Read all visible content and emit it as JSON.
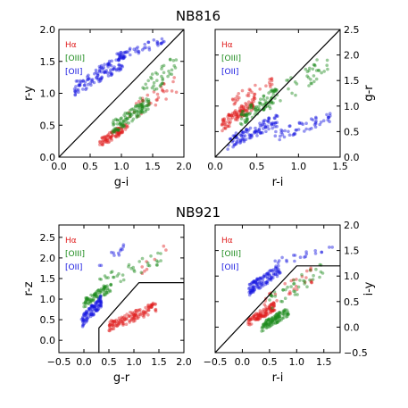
{
  "titles": [
    "NB816",
    "NB921"
  ],
  "colors": {
    "ha": "#e02020",
    "oiii": "#1a8a1a",
    "oii": "#1515e0"
  },
  "chart_data": [
    {
      "type": "scatter",
      "group_title": "NB816",
      "xlabel": "g-i",
      "ylabel": "r-y",
      "y_axis_side": "left",
      "xlim": [
        0.0,
        2.0
      ],
      "ylim": [
        0.0,
        2.0
      ],
      "xticks": [
        "0.0",
        "0.5",
        "1.0",
        "1.5",
        "2.0"
      ],
      "yticks": [
        "0.0",
        "0.5",
        "1.0",
        "1.5",
        "2.0"
      ],
      "legend": [
        "Hα",
        "[OIII]",
        "[OII]"
      ],
      "selection_line": [
        [
          0.0,
          0.0
        ],
        [
          2.0,
          2.0
        ]
      ],
      "series": [
        {
          "key": "ha",
          "clusters": [
            {
              "x": [
                0.65,
                1.1
              ],
              "y": [
                0.15,
                0.55
              ],
              "n": 90
            },
            {
              "x": [
                1.1,
                1.9
              ],
              "y": [
                0.5,
                1.3
              ],
              "n": 35
            }
          ]
        },
        {
          "key": "oiii",
          "clusters": [
            {
              "x": [
                0.85,
                1.45
              ],
              "y": [
                0.35,
                0.95
              ],
              "n": 110
            },
            {
              "x": [
                1.3,
                1.9
              ],
              "y": [
                0.8,
                1.7
              ],
              "n": 40
            }
          ]
        },
        {
          "key": "oii",
          "clusters": [
            {
              "x": [
                0.25,
                1.05
              ],
              "y": [
                0.95,
                1.65
              ],
              "n": 120
            },
            {
              "x": [
                0.9,
                1.7
              ],
              "y": [
                1.5,
                1.9
              ],
              "n": 45
            }
          ]
        }
      ]
    },
    {
      "type": "scatter",
      "group_title": "NB816",
      "xlabel": "r-i",
      "ylabel": "g-r",
      "y_axis_side": "right",
      "xlim": [
        0.0,
        1.5
      ],
      "ylim": [
        0.0,
        2.5
      ],
      "xticks": [
        "0.0",
        "0.5",
        "1.0",
        "1.5"
      ],
      "yticks": [
        "0.0",
        "0.5",
        "1.0",
        "1.5",
        "2.0",
        "2.5"
      ],
      "legend": [
        "Hα",
        "[OIII]",
        "[OII]"
      ],
      "selection_line": [
        [
          0.0,
          0.0
        ],
        [
          1.5,
          2.5
        ]
      ],
      "series": [
        {
          "key": "ha",
          "clusters": [
            {
              "x": [
                0.08,
                0.48
              ],
              "y": [
                0.5,
                1.2
              ],
              "n": 110
            },
            {
              "x": [
                0.2,
                0.7
              ],
              "y": [
                1.0,
                1.6
              ],
              "n": 30
            }
          ]
        },
        {
          "key": "oiii",
          "clusters": [
            {
              "x": [
                0.3,
                0.75
              ],
              "y": [
                0.6,
                1.4
              ],
              "n": 90
            },
            {
              "x": [
                0.6,
                1.35
              ],
              "y": [
                0.8,
                2.1
              ],
              "n": 40
            }
          ]
        },
        {
          "key": "oii",
          "clusters": [
            {
              "x": [
                0.15,
                0.75
              ],
              "y": [
                0.15,
                0.85
              ],
              "n": 110
            },
            {
              "x": [
                0.7,
                1.4
              ],
              "y": [
                0.3,
                0.9
              ],
              "n": 50
            }
          ]
        }
      ]
    },
    {
      "type": "scatter",
      "group_title": "NB921",
      "xlabel": "g-r",
      "ylabel": "r-z",
      "y_axis_side": "left",
      "xlim": [
        -0.5,
        2.0
      ],
      "ylim": [
        -0.3,
        2.8
      ],
      "xticks": [
        "−0.5",
        "0.0",
        "0.5",
        "1.0",
        "1.5",
        "2.0"
      ],
      "yticks": [
        "0.0",
        "0.5",
        "1.0",
        "1.5",
        "2.0",
        "2.5"
      ],
      "legend": [
        "Hα",
        "[OIII]",
        "[OII]"
      ],
      "selection_line": [
        [
          0.3,
          -0.3
        ],
        [
          0.3,
          0.3
        ],
        [
          1.1,
          1.4
        ],
        [
          2.0,
          1.4
        ]
      ],
      "series": [
        {
          "key": "ha",
          "clusters": [
            {
              "x": [
                0.5,
                1.45
              ],
              "y": [
                0.2,
                0.95
              ],
              "n": 130
            },
            {
              "x": [
                1.1,
                1.7
              ],
              "y": [
                1.5,
                2.6
              ],
              "n": 8
            }
          ]
        },
        {
          "key": "oiii",
          "clusters": [
            {
              "x": [
                0.0,
                0.55
              ],
              "y": [
                0.8,
                1.4
              ],
              "n": 80
            },
            {
              "x": [
                0.3,
                1.6
              ],
              "y": [
                1.2,
                2.2
              ],
              "n": 35
            }
          ]
        },
        {
          "key": "oii",
          "clusters": [
            {
              "x": [
                -0.05,
                0.35
              ],
              "y": [
                0.3,
                1.1
              ],
              "n": 100
            },
            {
              "x": [
                0.3,
                0.8
              ],
              "y": [
                1.5,
                2.5
              ],
              "n": 12
            }
          ]
        }
      ]
    },
    {
      "type": "scatter",
      "group_title": "NB921",
      "xlabel": "r-i",
      "ylabel": "i-y",
      "y_axis_side": "right",
      "xlim": [
        -0.5,
        1.8
      ],
      "ylim": [
        -0.5,
        2.0
      ],
      "xticks": [
        "−0.5",
        "0.0",
        "0.5",
        "1.0",
        "1.5"
      ],
      "yticks": [
        "−0.5",
        "0.0",
        "0.5",
        "1.0",
        "1.5",
        "2.0"
      ],
      "legend": [
        "Hα",
        "[OIII]",
        "[OII]"
      ],
      "selection_line": [
        [
          -0.5,
          -0.5
        ],
        [
          1.0,
          1.2
        ],
        [
          1.8,
          1.2
        ]
      ],
      "series": [
        {
          "key": "ha",
          "clusters": [
            {
              "x": [
                0.1,
                0.6
              ],
              "y": [
                0.0,
                0.5
              ],
              "n": 110
            },
            {
              "x": [
                0.4,
                1.3
              ],
              "y": [
                0.3,
                1.2
              ],
              "n": 30
            }
          ]
        },
        {
          "key": "oiii",
          "clusters": [
            {
              "x": [
                0.35,
                0.85
              ],
              "y": [
                -0.1,
                0.4
              ],
              "n": 110
            },
            {
              "x": [
                0.5,
                1.5
              ],
              "y": [
                0.3,
                1.3
              ],
              "n": 40
            }
          ]
        },
        {
          "key": "oii",
          "clusters": [
            {
              "x": [
                0.1,
                0.7
              ],
              "y": [
                0.6,
                1.25
              ],
              "n": 110
            },
            {
              "x": [
                0.6,
                1.7
              ],
              "y": [
                1.2,
                1.6
              ],
              "n": 20
            }
          ]
        }
      ]
    }
  ]
}
